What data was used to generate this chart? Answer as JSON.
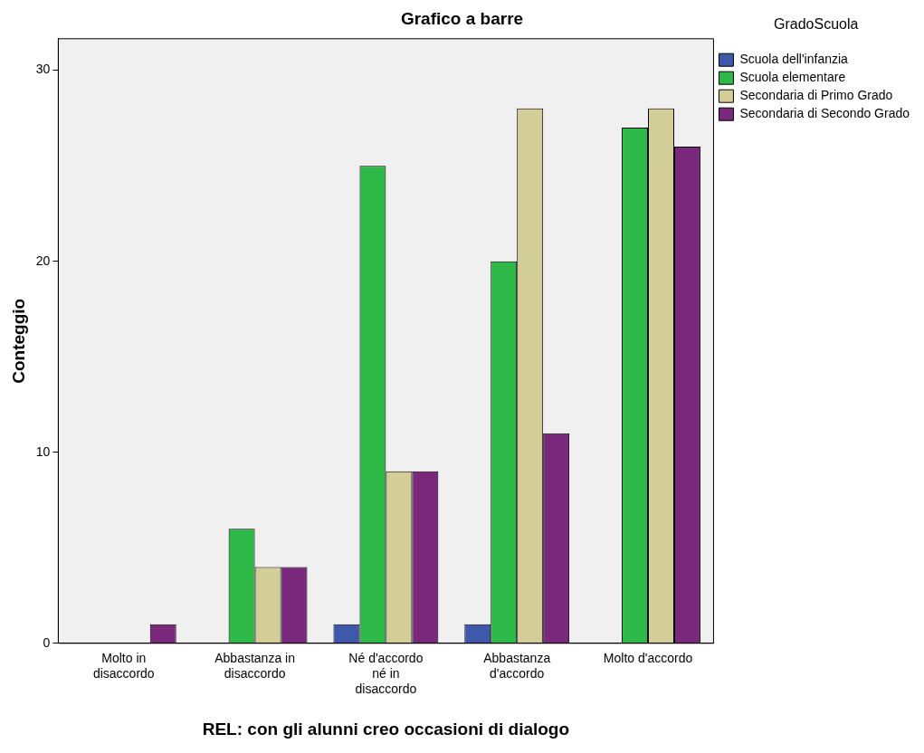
{
  "chart_data": {
    "type": "bar",
    "title": "Grafico a barre",
    "xlabel": "REL: con gli alunni creo occasioni di dialogo",
    "ylabel": "Conteggio",
    "legend_title": "GradoScuola",
    "categories": [
      "Molto in disaccordo",
      "Abbastanza in disaccordo",
      "Né d'accordo né in disaccordo",
      "Abbastanza d'accordo",
      "Molto d'accordo"
    ],
    "series": [
      {
        "name": "Scuola dell'infanzia",
        "color": "#3e58ac",
        "values": [
          null,
          null,
          1,
          1,
          null
        ]
      },
      {
        "name": "Scuola elementare",
        "color": "#2eb848",
        "values": [
          null,
          6,
          25,
          20,
          27
        ]
      },
      {
        "name": "Secondaria di Primo Grado",
        "color": "#d3ce97",
        "values": [
          null,
          4,
          9,
          28,
          28
        ]
      },
      {
        "name": "Secondaria di Secondo Grado",
        "color": "#79287c",
        "values": [
          1,
          4,
          9,
          11,
          26
        ]
      }
    ],
    "ylim": [
      0,
      31.65
    ],
    "yticks": [
      0,
      10,
      20,
      30
    ],
    "grid": false,
    "legend": "top right"
  }
}
